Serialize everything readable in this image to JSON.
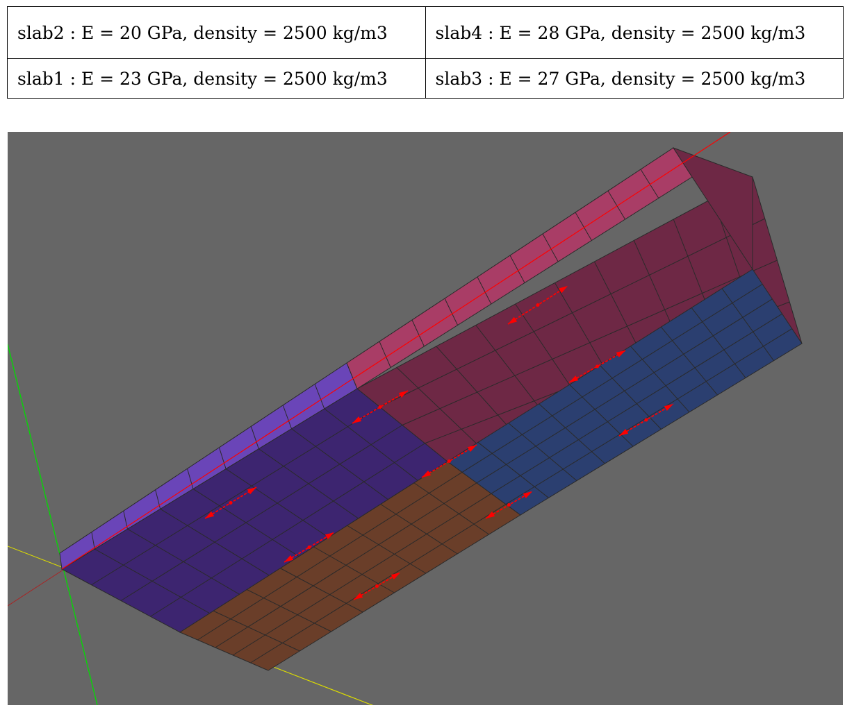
{
  "legend": {
    "rows": [
      [
        "slab2 : E = 20 GPa, density = 2500 kg/m3",
        "slab4 : E = 28 GPa, density = 2500 kg/m3"
      ],
      [
        "slab1 : E = 23 GPa, density = 2500 kg/m3",
        "slab3 : E = 27 GPa, density = 2500 kg/m3"
      ]
    ]
  },
  "model": {
    "slabs": [
      {
        "id": "slab1",
        "E_GPa": 23,
        "density_kg_m3": 2500,
        "color": "#6a3e29"
      },
      {
        "id": "slab2",
        "E_GPa": 20,
        "density_kg_m3": 2500,
        "color": "#3d2570"
      },
      {
        "id": "slab3",
        "E_GPa": 27,
        "density_kg_m3": 2500,
        "color": "#2b3f70"
      },
      {
        "id": "slab4",
        "E_GPa": 28,
        "density_kg_m3": 2500,
        "color": "#6e2845"
      }
    ],
    "edge_colors": {
      "slab2": "#6a45b8",
      "slab4": "#a93d66"
    },
    "background_color": "#666666",
    "mesh_line_color": "#2a2a2a",
    "arrow_color": "#ff0000",
    "axis_colors": {
      "x": "#ff0000",
      "y": "#00dd00",
      "z": "#dddd00"
    }
  }
}
